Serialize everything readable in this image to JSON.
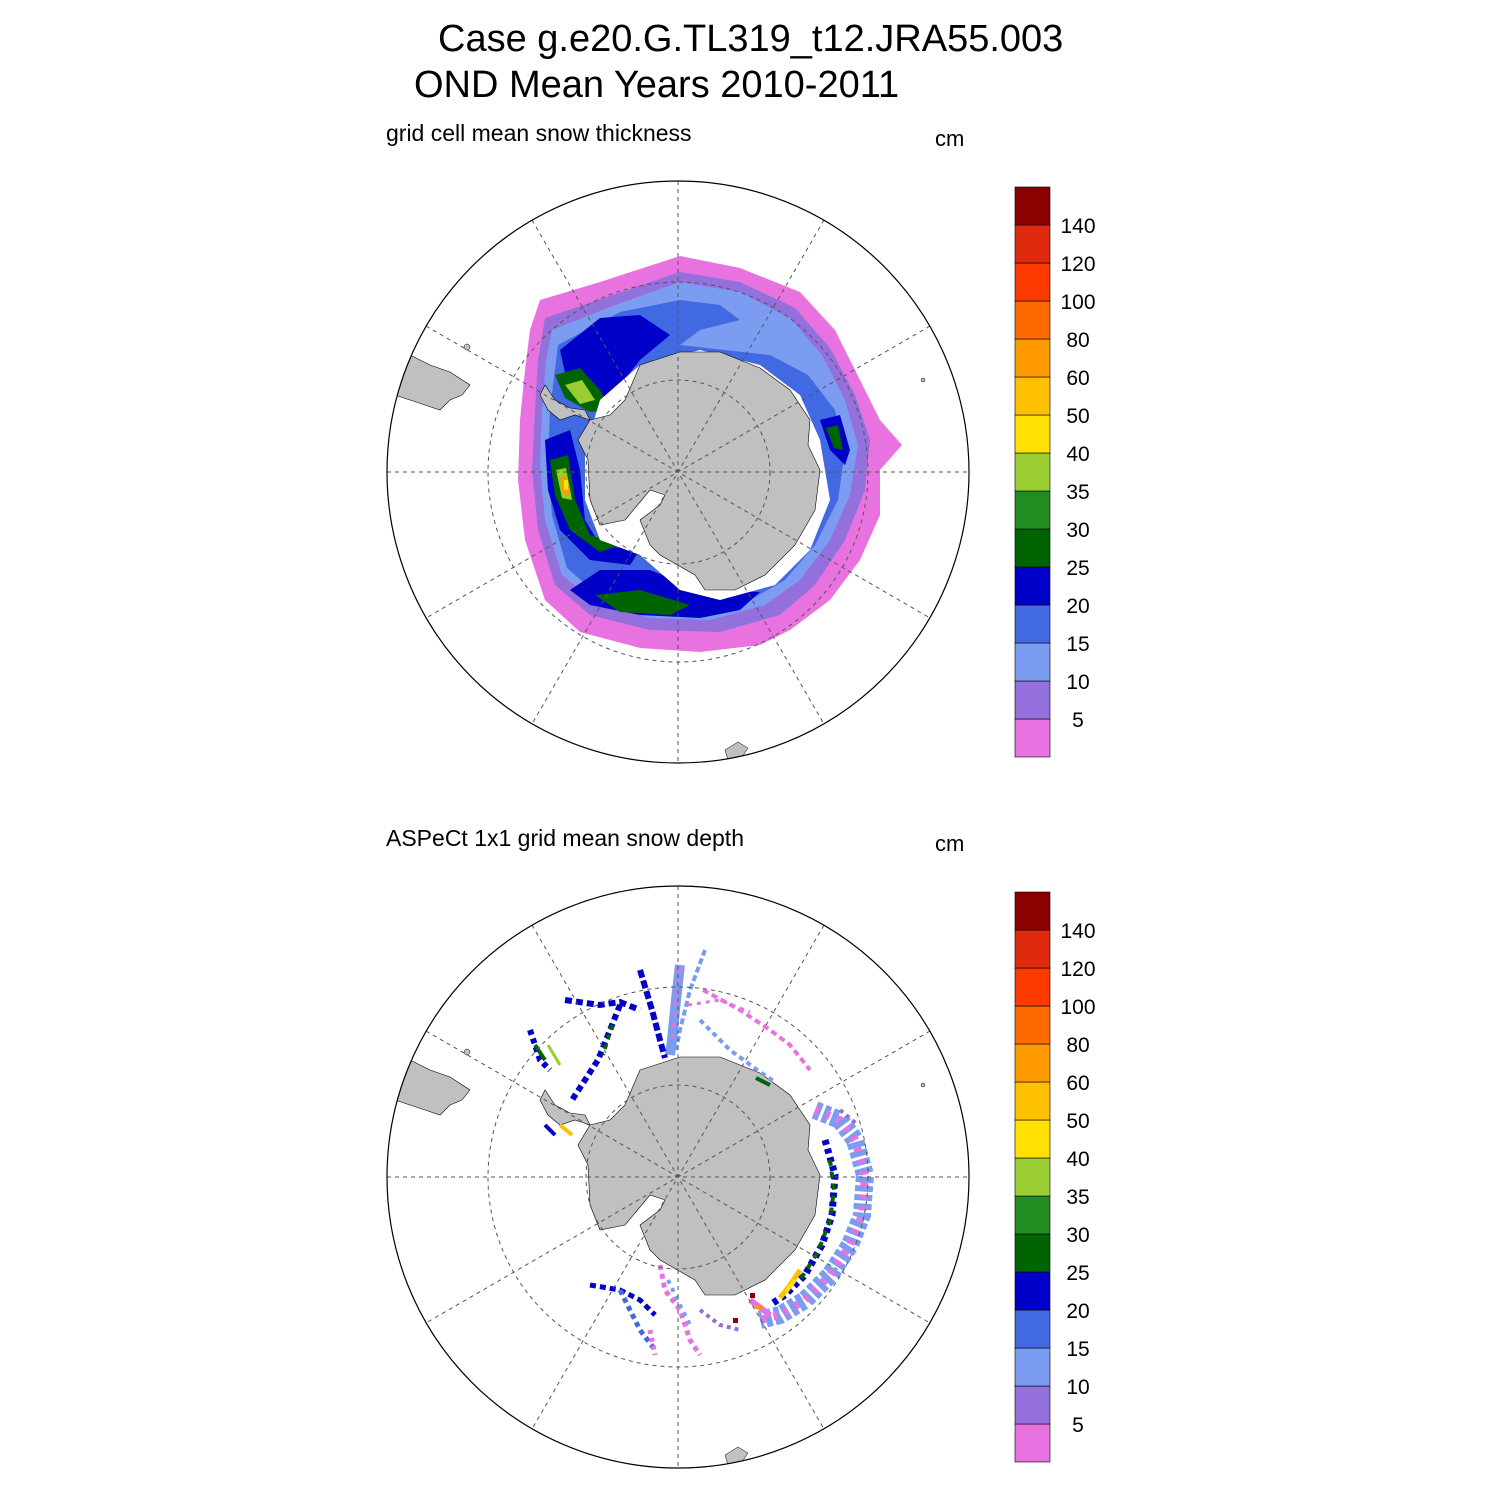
{
  "header": {
    "line1": "Case g.e20.G.TL319_t12.JRA55.003",
    "line2": "OND Mean   Years 2010-2011"
  },
  "panels": [
    {
      "title": "grid cell mean snow thickness",
      "units": "cm"
    },
    {
      "title": "ASPeCt 1x1 grid mean snow depth",
      "units": "cm"
    }
  ],
  "colorbar": {
    "labels": [
      "5",
      "10",
      "15",
      "20",
      "25",
      "30",
      "35",
      "40",
      "50",
      "60",
      "80",
      "100",
      "120",
      "140"
    ],
    "colors": [
      "#e873e0",
      "#9370db",
      "#7b9cf0",
      "#4169e1",
      "#0000c8",
      "#006400",
      "#228b22",
      "#9acd32",
      "#ffe000",
      "#ffc000",
      "#ff9a00",
      "#ff6a00",
      "#ff3a00",
      "#e02a10",
      "#8b0000"
    ]
  },
  "map": {
    "land_color": "#c0c0c0",
    "projection": "south polar stereographic",
    "grid": "dashed meridians every 30° and latitude circles"
  }
}
